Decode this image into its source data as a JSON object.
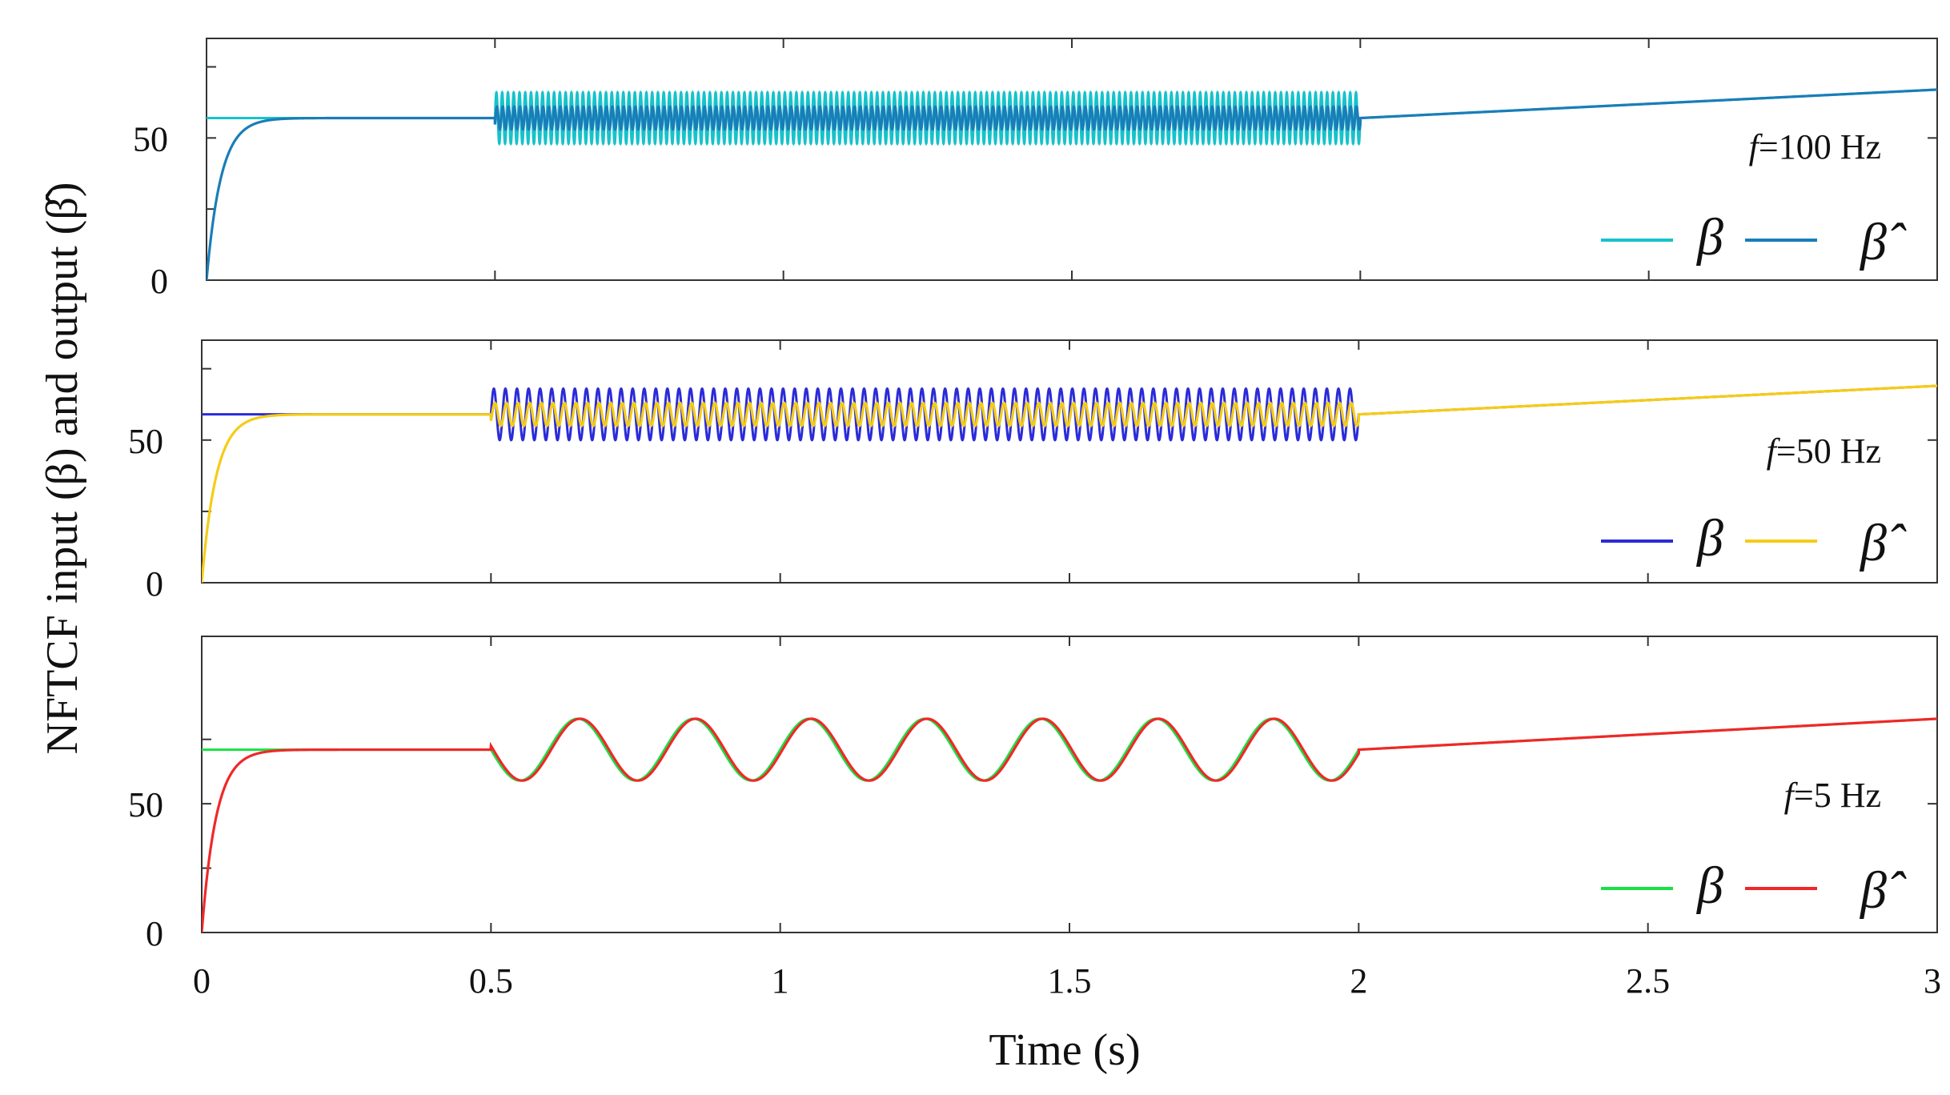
{
  "chart_data": {
    "type": "line",
    "ylabel": "NFTCF input (β) and output (β̂)",
    "xlabel": "Time (s)",
    "xlim": [
      0,
      3
    ],
    "x_ticks": [
      0,
      0.5,
      1,
      1.5,
      2,
      2.5,
      3
    ],
    "x_tick_labels": [
      "0",
      "0.5",
      "1",
      "1.5",
      "2",
      "2.5",
      "3"
    ],
    "panels": [
      {
        "label": "f=100 Hz",
        "label_prefix": "f",
        "label_suffix": "=100 Hz",
        "frequency_hz": 100,
        "ylim": [
          0,
          85
        ],
        "y_ticks": [
          0,
          50
        ],
        "y_tick_labels": [
          "0",
          "50"
        ],
        "steady_value": 57,
        "oscillation": {
          "start": 0.5,
          "end": 2.0,
          "input_amplitude": 9,
          "output_amplitude": 4
        },
        "ramp_end_value": 67,
        "output_time_constant": 0.025,
        "series": [
          {
            "name": "β",
            "color": "#17C2CB"
          },
          {
            "name": "β̂",
            "color": "#1A7DB8"
          }
        ]
      },
      {
        "label": "f=50 Hz",
        "label_prefix": "f",
        "label_suffix": "=50 Hz",
        "frequency_hz": 50,
        "ylim": [
          0,
          85
        ],
        "y_ticks": [
          0,
          50
        ],
        "y_tick_labels": [
          "0",
          "50"
        ],
        "steady_value": 59,
        "oscillation": {
          "start": 0.5,
          "end": 2.0,
          "input_amplitude": 9,
          "output_amplitude": 4
        },
        "ramp_end_value": 69,
        "output_time_constant": 0.025,
        "series": [
          {
            "name": "β",
            "color": "#2B2BD8"
          },
          {
            "name": "β̂",
            "color": "#F5CC16"
          }
        ]
      },
      {
        "label": "f=5 Hz",
        "label_prefix": "f",
        "label_suffix": "=5 Hz",
        "frequency_hz": 5,
        "ylim": [
          0,
          115
        ],
        "y_ticks": [
          0,
          50
        ],
        "y_tick_labels": [
          "0",
          "50"
        ],
        "steady_value": 71,
        "oscillation": {
          "start": 0.5,
          "end": 2.0,
          "input_amplitude": 12,
          "output_amplitude": 12,
          "phase_mode": "cosine_dip"
        },
        "ramp_end_value": 83,
        "output_time_constant": 0.025,
        "series": [
          {
            "name": "β",
            "color": "#19E046"
          },
          {
            "name": "β̂",
            "color": "#F02828"
          }
        ]
      }
    ]
  }
}
